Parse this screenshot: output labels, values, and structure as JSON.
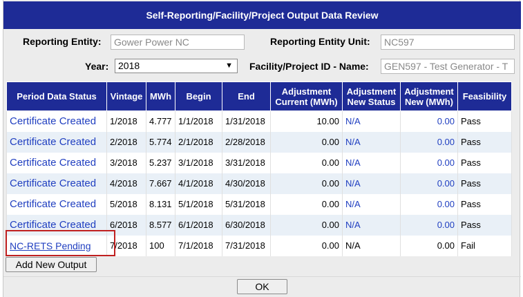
{
  "title": "Self-Reporting/Facility/Project Output Data Review",
  "form": {
    "entity_label": "Reporting Entity:",
    "entity_value": "Gower Power NC",
    "unit_label": "Reporting Entity Unit:",
    "unit_value": "NC597",
    "year_label": "Year:",
    "year_value": "2018",
    "facility_label": "Facility/Project ID - Name:",
    "facility_value": "GEN597 - Test Generator - T"
  },
  "table": {
    "headers": [
      "Period Data Status",
      "Vintage",
      "MWh",
      "Begin",
      "End",
      "Adjustment Current (MWh)",
      "Adjustment New Status",
      "Adjustment New (MWh)",
      "Feasibility"
    ],
    "rows": [
      {
        "status": "Certificate Created",
        "vintage": "1/2018",
        "mwh": "4.777",
        "begin": "1/1/2018",
        "end": "1/31/2018",
        "adj_current": "10.00",
        "adj_status": "N/A",
        "adj_new": "0.00",
        "feasibility": "Pass"
      },
      {
        "status": "Certificate Created",
        "vintage": "2/2018",
        "mwh": "5.774",
        "begin": "2/1/2018",
        "end": "2/28/2018",
        "adj_current": "0.00",
        "adj_status": "N/A",
        "adj_new": "0.00",
        "feasibility": "Pass"
      },
      {
        "status": "Certificate Created",
        "vintage": "3/2018",
        "mwh": "5.237",
        "begin": "3/1/2018",
        "end": "3/31/2018",
        "adj_current": "0.00",
        "adj_status": "N/A",
        "adj_new": "0.00",
        "feasibility": "Pass"
      },
      {
        "status": "Certificate Created",
        "vintage": "4/2018",
        "mwh": "7.667",
        "begin": "4/1/2018",
        "end": "4/30/2018",
        "adj_current": "0.00",
        "adj_status": "N/A",
        "adj_new": "0.00",
        "feasibility": "Pass"
      },
      {
        "status": "Certificate Created",
        "vintage": "5/2018",
        "mwh": "8.131",
        "begin": "5/1/2018",
        "end": "5/31/2018",
        "adj_current": "0.00",
        "adj_status": "N/A",
        "adj_new": "0.00",
        "feasibility": "Pass"
      },
      {
        "status": "Certificate Created",
        "vintage": "6/2018",
        "mwh": "8.577",
        "begin": "6/1/2018",
        "end": "6/30/2018",
        "adj_current": "0.00",
        "adj_status": "N/A",
        "adj_new": "0.00",
        "feasibility": "Pass"
      },
      {
        "status": "NC-RETS Pending",
        "vintage": "7/2018",
        "mwh": "100",
        "begin": "7/1/2018",
        "end": "7/31/2018",
        "adj_current": "0.00",
        "adj_status": "N/A",
        "adj_new": "0.00",
        "feasibility": "Fail"
      }
    ]
  },
  "buttons": {
    "add_new_output": "Add New Output",
    "ok": "OK"
  },
  "colors": {
    "header_bg": "#1e2b96",
    "link": "#1f3ec0",
    "alt_row": "#e9f0f7",
    "highlight_border": "#c02020"
  }
}
